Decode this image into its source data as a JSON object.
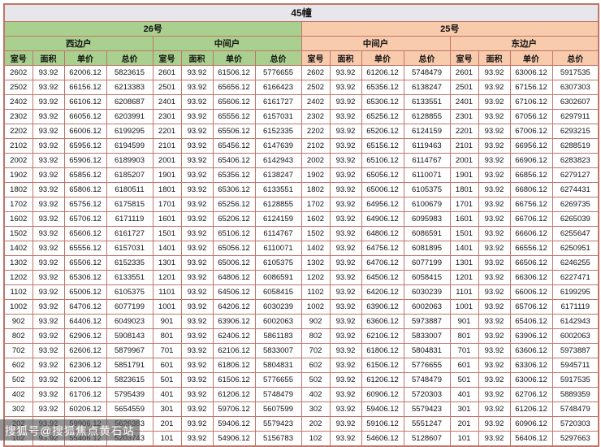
{
  "colors": {
    "section_26_green": "#a9d08e",
    "section_25_salmon": "#f8cbad",
    "title_gray": "#e7e6ea",
    "grid_border": "#c0756a"
  },
  "table": {
    "title": "45幢",
    "sections": [
      {
        "label": "26号",
        "units": [
          "西边户",
          "中间户"
        ]
      },
      {
        "label": "25号",
        "units": [
          "中间户",
          "东边户"
        ]
      }
    ],
    "column_headers": [
      "室号",
      "面积",
      "单价",
      "总价"
    ],
    "rows": [
      [
        "2602",
        "93.92",
        "62006.12",
        "5823615",
        "2601",
        "93.92",
        "61506.12",
        "5776655",
        "2602",
        "93.92",
        "61206.12",
        "5748479",
        "2601",
        "93.92",
        "63006.12",
        "5917535"
      ],
      [
        "2502",
        "93.92",
        "66156.12",
        "6213383",
        "2501",
        "93.92",
        "65656.12",
        "6166423",
        "2502",
        "93.92",
        "65356.12",
        "6138247",
        "2501",
        "93.92",
        "67156.12",
        "6307303"
      ],
      [
        "2402",
        "93.92",
        "66106.12",
        "6208687",
        "2401",
        "93.92",
        "65606.12",
        "6161727",
        "2402",
        "93.92",
        "65306.12",
        "6133551",
        "2401",
        "93.92",
        "67106.12",
        "6302607"
      ],
      [
        "2302",
        "93.92",
        "66056.12",
        "6203991",
        "2301",
        "93.92",
        "65556.12",
        "6157031",
        "2302",
        "93.92",
        "65256.12",
        "6128855",
        "2301",
        "93.92",
        "67056.12",
        "6297911"
      ],
      [
        "2202",
        "93.92",
        "66006.12",
        "6199295",
        "2201",
        "93.92",
        "65506.12",
        "6152335",
        "2202",
        "93.92",
        "65206.12",
        "6124159",
        "2201",
        "93.92",
        "67006.12",
        "6293215"
      ],
      [
        "2102",
        "93.92",
        "65956.12",
        "6194599",
        "2101",
        "93.92",
        "65456.12",
        "6147639",
        "2102",
        "93.92",
        "65156.12",
        "6119463",
        "2101",
        "93.92",
        "66956.12",
        "6288519"
      ],
      [
        "2002",
        "93.92",
        "65906.12",
        "6189903",
        "2001",
        "93.92",
        "65406.12",
        "6142943",
        "2002",
        "93.92",
        "65106.12",
        "6114767",
        "2001",
        "93.92",
        "66906.12",
        "6283823"
      ],
      [
        "1902",
        "93.92",
        "65856.12",
        "6185207",
        "1901",
        "93.92",
        "65356.12",
        "6138247",
        "1902",
        "93.92",
        "65056.12",
        "6110071",
        "1901",
        "93.92",
        "66856.12",
        "6279127"
      ],
      [
        "1802",
        "93.92",
        "65806.12",
        "6180511",
        "1801",
        "93.92",
        "65306.12",
        "6133551",
        "1802",
        "93.92",
        "65006.12",
        "6105375",
        "1801",
        "93.92",
        "66806.12",
        "6274431"
      ],
      [
        "1702",
        "93.92",
        "65756.12",
        "6175815",
        "1701",
        "93.92",
        "65256.12",
        "6128855",
        "1702",
        "93.92",
        "64956.12",
        "6100679",
        "1701",
        "93.92",
        "66756.12",
        "6269735"
      ],
      [
        "1602",
        "93.92",
        "65706.12",
        "6171119",
        "1601",
        "93.92",
        "65206.12",
        "6124159",
        "1602",
        "93.92",
        "64906.12",
        "6095983",
        "1601",
        "93.92",
        "66706.12",
        "6265039"
      ],
      [
        "1502",
        "93.92",
        "65606.12",
        "6161727",
        "1501",
        "93.92",
        "65106.12",
        "6114767",
        "1502",
        "93.92",
        "64806.12",
        "6086591",
        "1501",
        "93.92",
        "66606.12",
        "6255647"
      ],
      [
        "1402",
        "93.92",
        "65556.12",
        "6157031",
        "1401",
        "93.92",
        "65056.12",
        "6110071",
        "1402",
        "93.92",
        "64756.12",
        "6081895",
        "1401",
        "93.92",
        "66556.12",
        "6250951"
      ],
      [
        "1302",
        "93.92",
        "65506.12",
        "6152335",
        "1301",
        "93.92",
        "65006.12",
        "6105375",
        "1302",
        "93.92",
        "64706.12",
        "6077199",
        "1301",
        "93.92",
        "66506.12",
        "6246255"
      ],
      [
        "1202",
        "93.92",
        "65306.12",
        "6133551",
        "1201",
        "93.92",
        "64806.12",
        "6086591",
        "1202",
        "93.92",
        "64506.12",
        "6058415",
        "1201",
        "93.92",
        "66306.12",
        "6227471"
      ],
      [
        "1102",
        "93.92",
        "65006.12",
        "6105375",
        "1101",
        "93.92",
        "64506.12",
        "6058415",
        "1102",
        "93.92",
        "64206.12",
        "6030239",
        "1101",
        "93.92",
        "66006.12",
        "6199295"
      ],
      [
        "1002",
        "93.92",
        "64706.12",
        "6077199",
        "1001",
        "93.92",
        "64206.12",
        "6030239",
        "1002",
        "93.92",
        "63906.12",
        "6002063",
        "1001",
        "93.92",
        "65706.12",
        "6171119"
      ],
      [
        "902",
        "93.92",
        "64406.12",
        "6049023",
        "901",
        "93.92",
        "63906.12",
        "6002063",
        "902",
        "93.92",
        "63606.12",
        "5973887",
        "901",
        "93.92",
        "65406.12",
        "6142943"
      ],
      [
        "802",
        "93.92",
        "62906.12",
        "5908143",
        "801",
        "93.92",
        "62406.12",
        "5861183",
        "802",
        "93.92",
        "62106.12",
        "5833007",
        "801",
        "93.92",
        "63906.12",
        "6002063"
      ],
      [
        "702",
        "93.92",
        "62606.12",
        "5879967",
        "701",
        "93.92",
        "62106.12",
        "5833007",
        "702",
        "93.92",
        "61806.12",
        "5804831",
        "701",
        "93.92",
        "63606.12",
        "5973887"
      ],
      [
        "602",
        "93.92",
        "62306.12",
        "5851791",
        "601",
        "93.92",
        "61806.12",
        "5804831",
        "602",
        "93.92",
        "61506.12",
        "5776655",
        "601",
        "93.92",
        "63306.12",
        "5945711"
      ],
      [
        "502",
        "93.92",
        "62006.12",
        "5823615",
        "501",
        "93.92",
        "61506.12",
        "5776655",
        "502",
        "93.92",
        "61206.12",
        "5748479",
        "501",
        "93.92",
        "63006.12",
        "5917535"
      ],
      [
        "402",
        "93.92",
        "61706.12",
        "5795439",
        "401",
        "93.92",
        "61206.12",
        "5748479",
        "402",
        "93.92",
        "60906.12",
        "5720303",
        "401",
        "93.92",
        "62706.12",
        "5889359"
      ],
      [
        "302",
        "93.92",
        "60206.12",
        "5654559",
        "301",
        "93.92",
        "59706.12",
        "5607599",
        "302",
        "93.92",
        "59406.12",
        "5579423",
        "301",
        "93.92",
        "61206.12",
        "5748479"
      ],
      [
        "202",
        "93.92",
        "59906.12",
        "5626383",
        "201",
        "93.92",
        "59406.12",
        "5579423",
        "202",
        "93.92",
        "59106.12",
        "5551247",
        "201",
        "93.92",
        "60906.12",
        "5720303"
      ],
      [
        "102",
        "93.92",
        "55406.12",
        "5203743",
        "101",
        "93.92",
        "54906.12",
        "5156783",
        "102",
        "93.92",
        "54606.12",
        "5128607",
        "101",
        "93.92",
        "56406.12",
        "5297663"
      ]
    ]
  },
  "watermark": {
    "text": "搜狐号@搜狐焦点黄石站"
  }
}
